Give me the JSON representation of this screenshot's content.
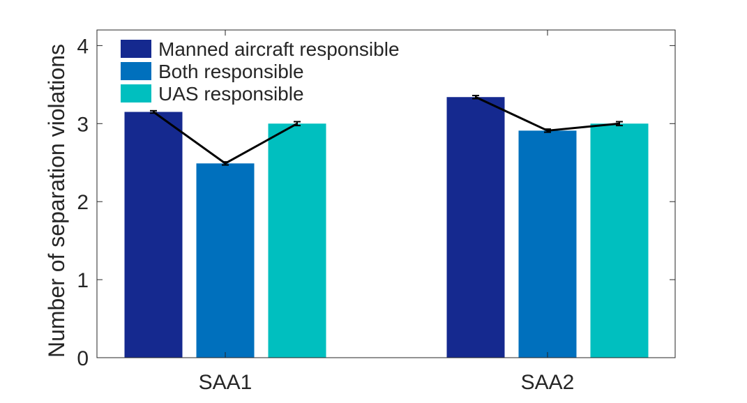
{
  "chart_data": {
    "type": "bar",
    "title": "",
    "xlabel": "",
    "ylabel": "Number of separation violations",
    "categories": [
      "SAA1",
      "SAA2"
    ],
    "ylim": [
      0,
      4.2
    ],
    "yticks": [
      0,
      1,
      2,
      3,
      4
    ],
    "grid": false,
    "legend_position": "top-left",
    "series": [
      {
        "name": "Manned aircraft responsible",
        "color": "#15298F",
        "values": [
          3.15,
          3.34
        ],
        "errors": [
          0.015,
          0.02
        ]
      },
      {
        "name": "Both responsible",
        "color": "#0070BD",
        "values": [
          2.49,
          2.91
        ],
        "errors": [
          0.02,
          0.02
        ]
      },
      {
        "name": "UAS responsible",
        "color": "#00BFBF",
        "values": [
          3.0,
          3.0
        ],
        "errors": [
          0.025,
          0.025
        ]
      }
    ],
    "connecting_line": {
      "color": "#000000"
    }
  }
}
